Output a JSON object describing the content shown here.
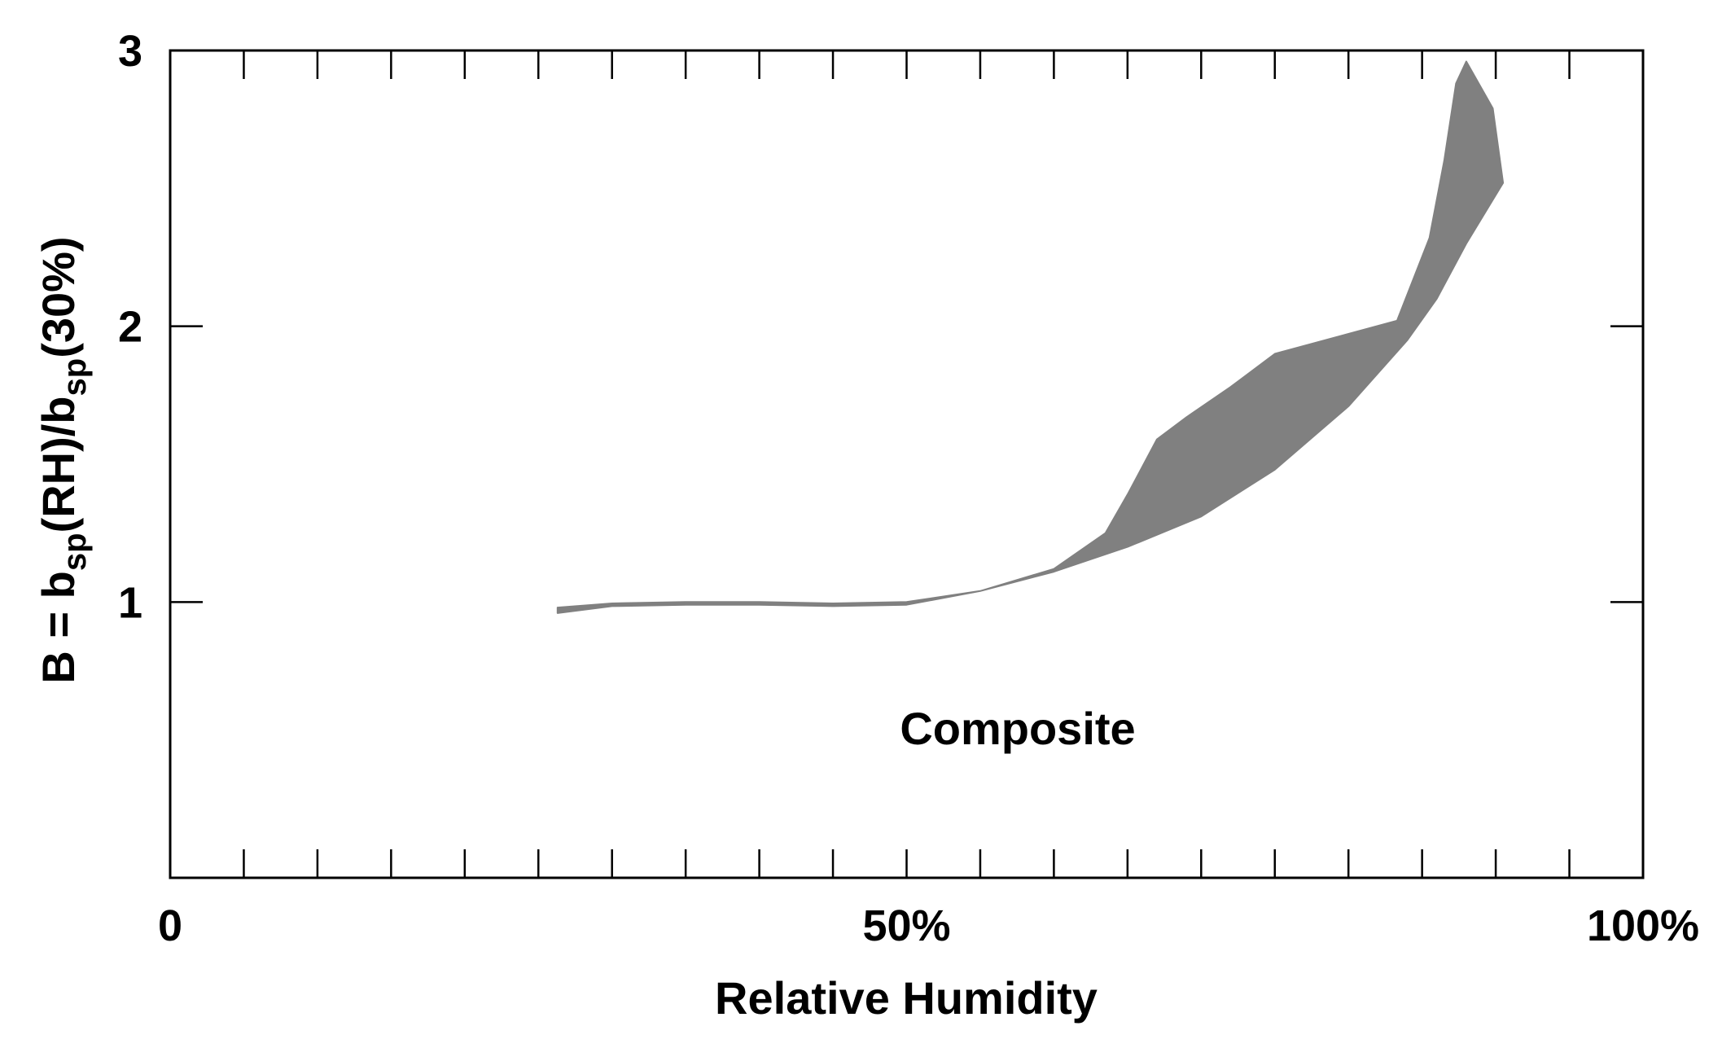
{
  "chart_data": {
    "type": "area",
    "title": "",
    "annotation": "Composite",
    "xlabel": "Relative Humidity",
    "ylabel": {
      "prefix": "B = b",
      "sub1": "sp",
      "mid": "(RH)/b",
      "sub2": "sp",
      "suffix": "(30%)"
    },
    "xlim": [
      0,
      100
    ],
    "ylim": [
      0,
      3
    ],
    "x_tick_labels": [
      {
        "value": 0,
        "label": "0"
      },
      {
        "value": 50,
        "label": "50%"
      },
      {
        "value": 100,
        "label": "100%"
      }
    ],
    "y_tick_labels": [
      {
        "value": 1,
        "label": "1"
      },
      {
        "value": 2,
        "label": "2"
      },
      {
        "value": 3,
        "label": "3"
      }
    ],
    "minor_x_ticks": [
      5,
      10,
      15,
      20,
      25,
      30,
      35,
      40,
      45,
      50,
      55,
      60,
      65,
      70,
      75,
      80,
      85,
      90,
      95
    ],
    "grid": false,
    "band_color": "#808080",
    "series": [
      {
        "upper": [
          {
            "x": 26.3,
            "y": 0.98
          },
          {
            "x": 30,
            "y": 0.995
          },
          {
            "x": 35,
            "y": 1.0
          },
          {
            "x": 40,
            "y": 1.0
          },
          {
            "x": 45,
            "y": 0.995
          },
          {
            "x": 50,
            "y": 1.0
          },
          {
            "x": 55,
            "y": 1.04
          },
          {
            "x": 60,
            "y": 1.12
          },
          {
            "x": 63.5,
            "y": 1.25
          },
          {
            "x": 65,
            "y": 1.39
          },
          {
            "x": 67,
            "y": 1.59
          },
          {
            "x": 69,
            "y": 1.67
          },
          {
            "x": 72,
            "y": 1.78
          },
          {
            "x": 75,
            "y": 1.9
          },
          {
            "x": 83.3,
            "y": 2.02
          },
          {
            "x": 85.5,
            "y": 2.32
          },
          {
            "x": 86.5,
            "y": 2.6
          },
          {
            "x": 87.3,
            "y": 2.88
          },
          {
            "x": 88,
            "y": 2.96
          },
          {
            "x": 89.8,
            "y": 2.79
          },
          {
            "x": 90.5,
            "y": 2.52
          }
        ],
        "lower": [
          {
            "x": 26.3,
            "y": 0.96
          },
          {
            "x": 30,
            "y": 0.985
          },
          {
            "x": 35,
            "y": 0.99
          },
          {
            "x": 40,
            "y": 0.99
          },
          {
            "x": 45,
            "y": 0.985
          },
          {
            "x": 50,
            "y": 0.99
          },
          {
            "x": 55,
            "y": 1.04
          },
          {
            "x": 60,
            "y": 1.11
          },
          {
            "x": 65,
            "y": 1.2
          },
          {
            "x": 70,
            "y": 1.31
          },
          {
            "x": 75,
            "y": 1.48
          },
          {
            "x": 80,
            "y": 1.71
          },
          {
            "x": 84,
            "y": 1.95
          },
          {
            "x": 86,
            "y": 2.1
          },
          {
            "x": 88,
            "y": 2.3
          },
          {
            "x": 90.5,
            "y": 2.52
          }
        ]
      }
    ]
  }
}
